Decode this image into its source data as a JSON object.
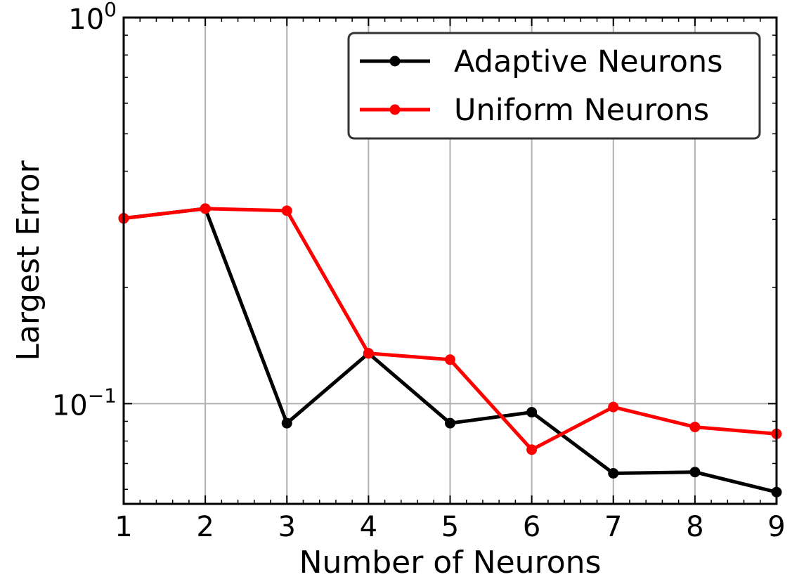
{
  "chart_data": {
    "type": "line",
    "xlabel": "Number of Neurons",
    "ylabel": "Largest Error",
    "x": [
      1,
      2,
      3,
      4,
      5,
      6,
      7,
      8,
      9
    ],
    "xlim": [
      1,
      9
    ],
    "ylim": [
      0.055,
      1.0
    ],
    "yscale": "log",
    "xticks": [
      "1",
      "2",
      "3",
      "4",
      "5",
      "6",
      "7",
      "8",
      "9"
    ],
    "yticks": [
      {
        "value": 1.0,
        "base": "10",
        "exp": "0"
      },
      {
        "value": 0.1,
        "base": "10",
        "exp": "−1"
      }
    ],
    "grid": true,
    "legend_position": "top-right",
    "series": [
      {
        "name": "Adaptive Neurons",
        "color": "#000000",
        "values": [
          0.302,
          0.32,
          0.089,
          0.135,
          0.089,
          0.095,
          0.066,
          0.0665,
          0.059
        ]
      },
      {
        "name": "Uniform Neurons",
        "color": "#ff0000",
        "values": [
          0.302,
          0.32,
          0.316,
          0.135,
          0.13,
          0.076,
          0.098,
          0.087,
          0.0835
        ]
      }
    ]
  }
}
